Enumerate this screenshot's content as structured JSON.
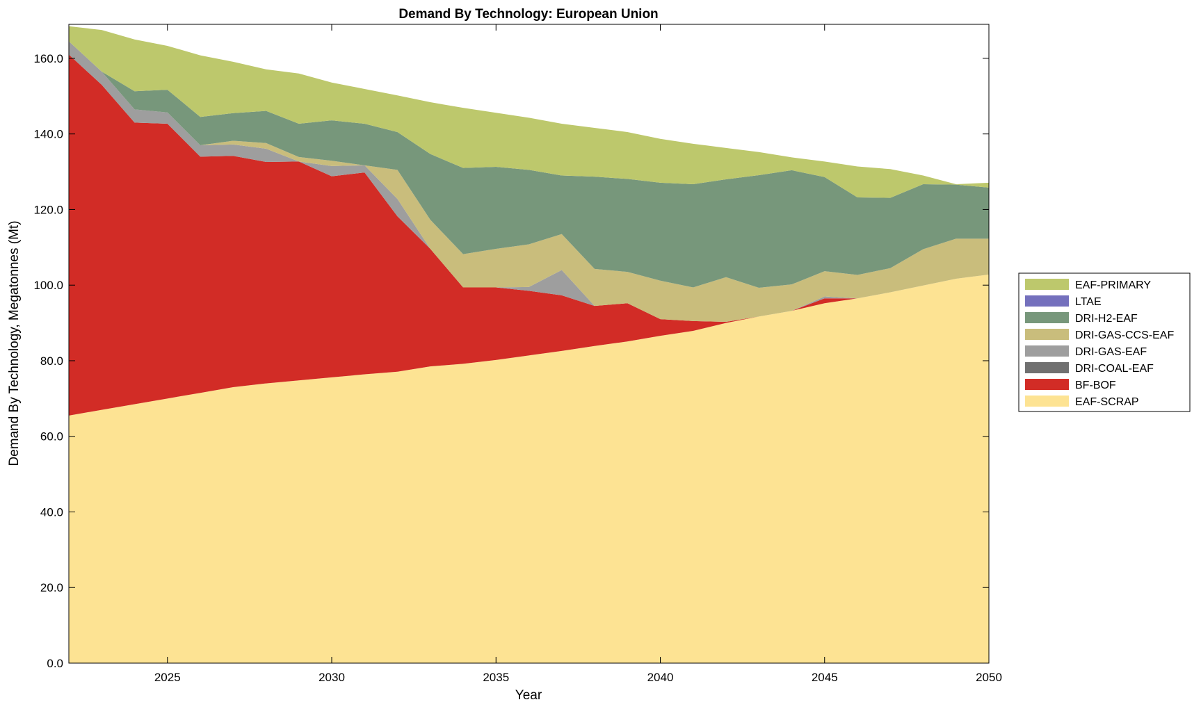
{
  "chart_data": {
    "type": "area",
    "stacked": true,
    "title": "Demand By Technology: European Union",
    "xlabel": "Year",
    "ylabel": "Demand By Technology, Megatonnes (Mt)",
    "xlim": [
      2022,
      2050
    ],
    "ylim": [
      0,
      169
    ],
    "xticks": [
      "2025",
      "2030",
      "2035",
      "2040",
      "2045",
      "2050"
    ],
    "yticks": [
      "0.0",
      "20.0",
      "40.0",
      "60.0",
      "80.0",
      "100.0",
      "120.0",
      "140.0",
      "160.0"
    ],
    "grid": false,
    "legend_position": "right",
    "x": [
      2022,
      2023,
      2024,
      2025,
      2026,
      2027,
      2028,
      2029,
      2030,
      2031,
      2032,
      2033,
      2034,
      2035,
      2036,
      2037,
      2038,
      2039,
      2040,
      2041,
      2042,
      2043,
      2044,
      2045,
      2046,
      2047,
      2048,
      2049,
      2050
    ],
    "series": [
      {
        "name": "EAF-SCRAP",
        "color": "#fde393",
        "values": [
          65.5,
          67,
          68.5,
          70,
          71.5,
          73,
          74,
          74.8,
          75.6,
          76.4,
          77.1,
          78.5,
          79.2,
          80.2,
          81.4,
          82.6,
          83.9,
          85.1,
          86.6,
          87.9,
          90,
          91.7,
          93.2,
          95.2,
          96.5,
          98.1,
          99.9,
          101.7,
          102.8
        ]
      },
      {
        "name": "BF-BOF",
        "color": "#d22c26",
        "values": [
          95.5,
          86,
          74.5,
          72.7,
          62.5,
          61.2,
          58.6,
          57.9,
          53.2,
          53.4,
          41.1,
          31.1,
          20.2,
          19.2,
          17.1,
          14.7,
          10.6,
          10.1,
          4.4,
          2.6,
          0.3,
          0,
          0,
          1.3,
          0,
          0,
          0,
          0,
          0
        ]
      },
      {
        "name": "DRI-COAL-EAF",
        "color": "#707070",
        "values": [
          0,
          0,
          0,
          0,
          0,
          0,
          0,
          0,
          0,
          0,
          0,
          0,
          0,
          0,
          0,
          0,
          0,
          0,
          0,
          0,
          0,
          0,
          0,
          0,
          0,
          0,
          0,
          0,
          0
        ]
      },
      {
        "name": "DRI-GAS-EAF",
        "color": "#9e9e9e",
        "values": [
          3.5,
          3.5,
          3.5,
          3,
          3,
          3,
          3.5,
          0,
          2.7,
          1.9,
          4.6,
          0,
          0,
          0,
          1,
          6.7,
          0,
          0,
          0,
          0,
          0,
          0,
          0,
          0.5,
          0,
          0,
          0,
          0,
          0
        ]
      },
      {
        "name": "DRI-GAS-CCS-EAF",
        "color": "#c9bd7c",
        "values": [
          0,
          0,
          0,
          0,
          0,
          1,
          1.5,
          1.2,
          1.4,
          0,
          7.7,
          7.7,
          8.8,
          10.2,
          11.3,
          9.5,
          9.8,
          8.3,
          10.2,
          8.9,
          11.8,
          7.6,
          7,
          6.7,
          6.2,
          6.4,
          9.6,
          10.6,
          9.5
        ]
      },
      {
        "name": "LTAE",
        "color": "#7470bd",
        "values": [
          0,
          0,
          0,
          0,
          0,
          0,
          0,
          0,
          0,
          0,
          0,
          0,
          0,
          0,
          0,
          0,
          0,
          0,
          0,
          0,
          0,
          0,
          0,
          0,
          0,
          0,
          0,
          0,
          0
        ]
      },
      {
        "name": "DRI-H2-EAF",
        "color": "#77977b",
        "values": [
          0,
          0,
          4.8,
          6,
          7.5,
          7.3,
          8.5,
          8.8,
          10.7,
          11,
          10,
          17.4,
          22.8,
          21.7,
          19.7,
          15.5,
          24.4,
          24.6,
          25.9,
          27.3,
          25.9,
          29.8,
          30.2,
          24.9,
          20.5,
          18.6,
          17.2,
          14.3,
          13.5
        ]
      },
      {
        "name": "EAF-PRIMARY",
        "color": "#bdc86c",
        "values": [
          4,
          11,
          13.7,
          11.6,
          16.3,
          13.6,
          11,
          13.3,
          10,
          9.2,
          9.7,
          13.7,
          15.9,
          14.3,
          13.8,
          13.7,
          12.9,
          12.4,
          11.6,
          10.7,
          8.3,
          6.1,
          3.4,
          4.1,
          8.2,
          7.6,
          2.3,
          0.1,
          1.3
        ]
      }
    ],
    "legend_order": [
      "EAF-PRIMARY",
      "LTAE",
      "DRI-H2-EAF",
      "DRI-GAS-CCS-EAF",
      "DRI-GAS-EAF",
      "DRI-COAL-EAF",
      "BF-BOF",
      "EAF-SCRAP"
    ]
  }
}
